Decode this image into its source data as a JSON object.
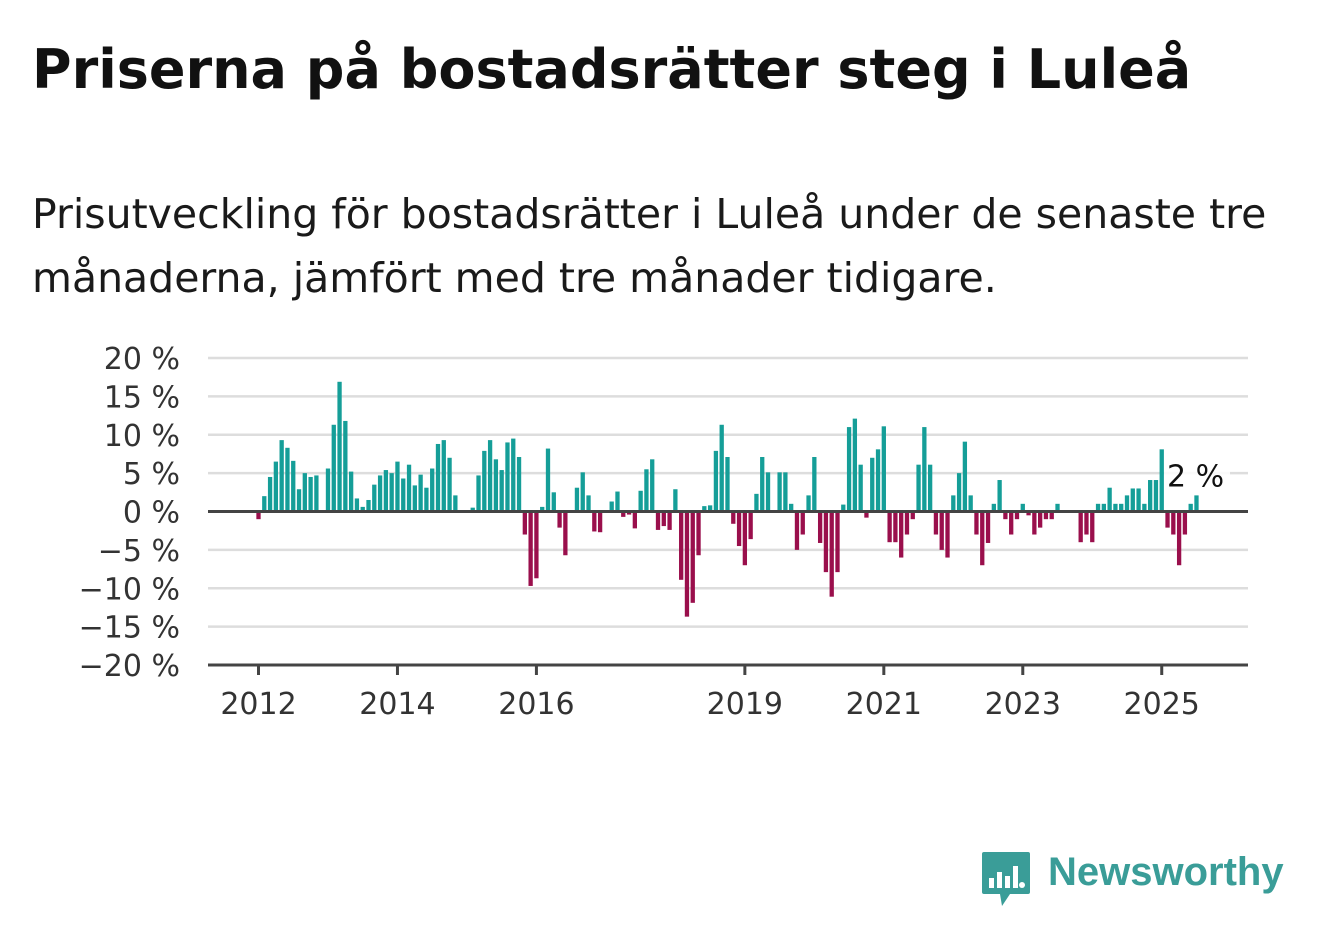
{
  "title": "Priserna på bostadsrätter steg i Luleå",
  "subtitle": "Prisutveckling för bostadsrätter i Luleå under de senaste tre månaderna, jämfört med tre månader tidigare.",
  "brand": {
    "name": "Newsworthy",
    "color": "#3a9d98"
  },
  "chart_data": {
    "type": "bar",
    "title": "Priserna på bostadsrätter steg i Luleå",
    "subtitle": "Prisutveckling för bostadsrätter i Luleå under de senaste tre månaderna, jämfört med tre månader tidigare.",
    "unit": "%",
    "frequency": "monthly",
    "start": "2012-01",
    "ylim": [
      -20,
      20
    ],
    "y_ticks": [
      20,
      15,
      10,
      5,
      0,
      -5,
      -10,
      -15,
      -20
    ],
    "y_tick_labels": [
      "20 %",
      "15 %",
      "10 %",
      "5 %",
      "0 %",
      "−5 %",
      "−10 %",
      "−15 %",
      "−20 %"
    ],
    "x_ticks": [
      "2012",
      "2014",
      "2016",
      "2019",
      "2021",
      "2023",
      "2025"
    ],
    "colors": {
      "positive": "#159e98",
      "negative": "#9a0f4c",
      "axis": "#444444",
      "grid": "#dddddd"
    },
    "grid": true,
    "end_label": "2 %",
    "values": [
      -1,
      2,
      4.5,
      6.5,
      9.3,
      8.3,
      6.6,
      2.9,
      5,
      4.5,
      4.7,
      null,
      5.6,
      11.3,
      16.9,
      11.8,
      5.2,
      1.7,
      0.6,
      1.5,
      3.5,
      4.7,
      5.4,
      5,
      6.5,
      4.3,
      6.1,
      3.4,
      4.8,
      3.1,
      5.6,
      8.8,
      9.3,
      7,
      2.1,
      null,
      null,
      0.5,
      4.7,
      7.9,
      9.3,
      6.8,
      5.4,
      9,
      9.5,
      7.1,
      -3,
      -9.7,
      -8.7,
      0.6,
      8.2,
      2.5,
      -2.1,
      -5.7,
      null,
      3.1,
      5.1,
      2.1,
      -2.6,
      -2.7,
      null,
      1.3,
      2.6,
      -0.7,
      -0.4,
      -2.2,
      2.7,
      5.5,
      6.8,
      -2.4,
      -1.9,
      -2.4,
      2.9,
      -8.9,
      -13.7,
      -11.9,
      -5.7,
      0.7,
      0.8,
      7.9,
      11.3,
      7.1,
      -1.6,
      -4.5,
      -7,
      -3.6,
      2.3,
      7.1,
      5.1,
      null,
      5.1,
      5.1,
      1,
      -5,
      -3,
      2.1,
      7.1,
      -4.1,
      -7.9,
      -11.1,
      -7.9,
      0.9,
      11,
      12.1,
      6.1,
      -0.8,
      7,
      8.1,
      11.1,
      -4,
      -4,
      -6,
      -3,
      -1,
      6.1,
      11,
      6.1,
      -3,
      -5,
      -6,
      2.1,
      5,
      9.1,
      2.1,
      -3,
      -7,
      -4.1,
      1,
      4.1,
      -1,
      -3,
      -1,
      1,
      -0.5,
      -3,
      -2.1,
      -1,
      -1,
      1,
      null,
      null,
      null,
      -4,
      -3,
      -4,
      1,
      1,
      3.1,
      1,
      1,
      2.1,
      3,
      3,
      1,
      4.1,
      4.1,
      8.1,
      -2.1,
      -3,
      -7,
      -3,
      1,
      2.1
    ]
  }
}
